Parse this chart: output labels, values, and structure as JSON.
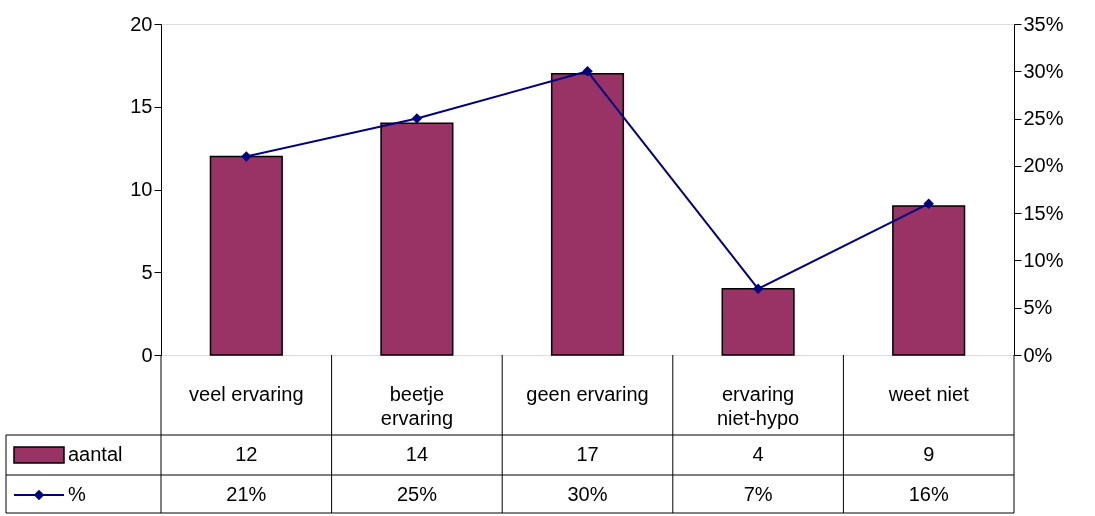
{
  "chart_data": {
    "type": "bar",
    "categories": [
      "veel ervaring",
      "beetje ervaring",
      "geen ervaring",
      "ervaring niet-hypo",
      "weet niet"
    ],
    "series": [
      {
        "name": "aantal",
        "color": "#993366",
        "values": [
          12,
          14,
          17,
          4,
          9
        ],
        "value_labels": [
          "12",
          "14",
          "17",
          "4",
          "9"
        ]
      },
      {
        "name": "%",
        "type": "line",
        "axis": "y2",
        "color": "#000080",
        "values": [
          21,
          25,
          30,
          7,
          16
        ],
        "value_labels": [
          "21%",
          "25%",
          "30%",
          "7%",
          "16%"
        ]
      }
    ],
    "ylim": [
      0,
      20
    ],
    "yticks": [
      0,
      5,
      10,
      15,
      20
    ],
    "y2lim": [
      0,
      35
    ],
    "y2ticks": [
      {
        "value": 0,
        "label": "0%"
      },
      {
        "value": 5,
        "label": "5%"
      },
      {
        "value": 10,
        "label": "10%"
      },
      {
        "value": 15,
        "label": "15%"
      },
      {
        "value": 20,
        "label": "20%"
      },
      {
        "value": 25,
        "label": "25%"
      },
      {
        "value": 30,
        "label": "30%"
      },
      {
        "value": 35,
        "label": "35%"
      }
    ],
    "marker": "diamond",
    "grid": false,
    "legend": "bottom left"
  }
}
